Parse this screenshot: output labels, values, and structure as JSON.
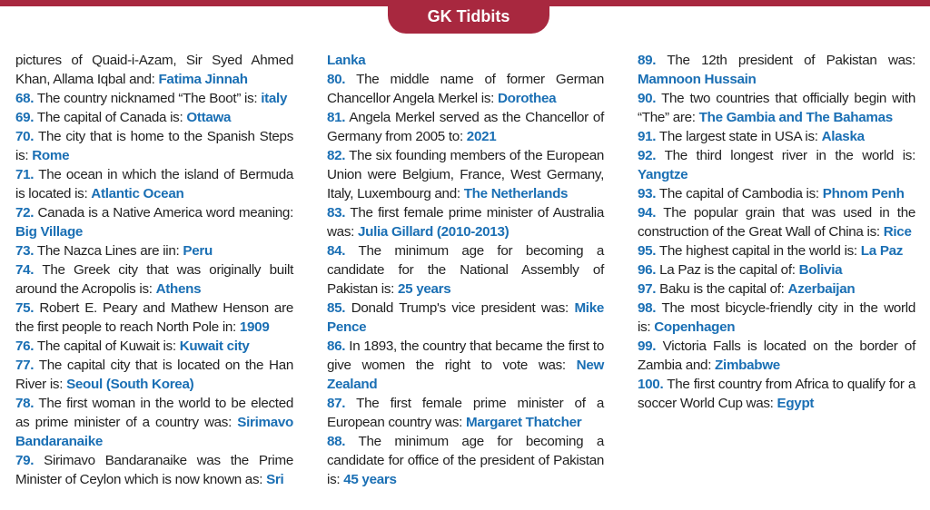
{
  "header": {
    "title": "GK Tidbits"
  },
  "columns": [
    [
      {
        "num": "",
        "q": "pictures of Quaid-i-Azam, Sir Syed Ahmed Khan, Allama Iqbal and:",
        "a": "Fatima Jinnah"
      },
      {
        "num": "68.",
        "q": "The country nicknamed “The Boot” is:",
        "a": "italy"
      },
      {
        "num": "69.",
        "q": "The capital of Canada is:",
        "a": "Ottawa"
      },
      {
        "num": "70.",
        "q": "The city that is home to the Spanish Steps is:",
        "a": "Rome"
      },
      {
        "num": "71.",
        "q": "The ocean in which the island of Bermuda is located is:",
        "a": "Atlantic Ocean"
      },
      {
        "num": "72.",
        "q": "Canada is a Native America word meaning:",
        "a": "Big Village"
      },
      {
        "num": "73.",
        "q": "The Nazca Lines are iin:",
        "a": "Peru"
      },
      {
        "num": "74.",
        "q": "The Greek city that was originally built around the Acropolis is:",
        "a": "Athens"
      },
      {
        "num": "75.",
        "q": "Robert E. Peary and Mathew Henson are the first people to reach North Pole in:",
        "a": "1909"
      },
      {
        "num": "76.",
        "q": "The capital of Kuwait is:",
        "a": "Kuwait city"
      },
      {
        "num": "77.",
        "q": "The capital city that is located on the Han River is:",
        "a": "Seoul (South Korea)"
      },
      {
        "num": "78.",
        "q": "The first woman in the world to be elected as prime minister of a country was:",
        "a": "Sirimavo Bandaranaike"
      },
      {
        "num": "79.",
        "q": "Sirimavo Bandaranaike was the Prime Minister of Ceylon which is now known as:",
        "a": "Sri"
      }
    ],
    [
      {
        "num": "",
        "q": "",
        "a": "Lanka"
      },
      {
        "num": "80.",
        "q": "The middle name of former German Chancellor Angela Merkel is:",
        "a": "Dorothea"
      },
      {
        "num": "81.",
        "q": "Angela Merkel served as the Chancellor of Germany from 2005 to:",
        "a": "2021"
      },
      {
        "num": "82.",
        "q": "The six founding members of the European Union were Belgium, France, West Germany, Italy, Luxembourg and:",
        "a": "The Netherlands"
      },
      {
        "num": "83.",
        "q": "The first female prime minister of Australia was:",
        "a": "Julia Gillard (2010-2013)"
      },
      {
        "num": "84.",
        "q": "The minimum age for becoming a candidate for the National Assembly of Pakistan is:",
        "a": "25 years"
      },
      {
        "num": "85.",
        "q": "Donald Trump's vice president was:",
        "a": "Mike Pence"
      },
      {
        "num": "86.",
        "q": "In 1893, the country that became the first to give women the right to vote was:",
        "a": "New Zealand"
      },
      {
        "num": "87.",
        "q": "The first female prime minister of a European country was:",
        "a": "Margaret Thatcher"
      },
      {
        "num": "88.",
        "q": "The minimum age for becoming a candidate for office of the president of Pakistan is:",
        "a": "45 years"
      }
    ],
    [
      {
        "num": "89.",
        "q": "The 12th president of Pakistan was:",
        "a": "Mamnoon Hussain"
      },
      {
        "num": "90.",
        "q": "The two countries that officially begin with “The” are:",
        "a": "The Gambia and The Bahamas"
      },
      {
        "num": "91.",
        "q": "The largest state in USA is:",
        "a": "Alaska"
      },
      {
        "num": "92.",
        "q": "The third longest river in the world is:",
        "a": "Yangtze"
      },
      {
        "num": "93.",
        "q": "The capital of Cambodia is:",
        "a": "Phnom Penh"
      },
      {
        "num": "94.",
        "q": "The popular grain that was used in the construction of the Great Wall of China is:",
        "a": "Rice"
      },
      {
        "num": "95.",
        "q": "The highest capital in the world is:",
        "a": "La Paz"
      },
      {
        "num": "96.",
        "q": "La Paz is the capital of:",
        "a": "Bolivia"
      },
      {
        "num": "97.",
        "q": "Baku is the capital of:",
        "a": "Azerbaijan"
      },
      {
        "num": "98.",
        "q": "The most bicycle-friendly city in the world is:",
        "a": "Copenhagen"
      },
      {
        "num": "99.",
        "q": "Victoria Falls is located on the border of Zambia and:",
        "a": "Zimbabwe"
      },
      {
        "num": "100.",
        "q": "The first country from Africa to qualify for a soccer World Cup was:",
        "a": "Egypt"
      }
    ]
  ]
}
